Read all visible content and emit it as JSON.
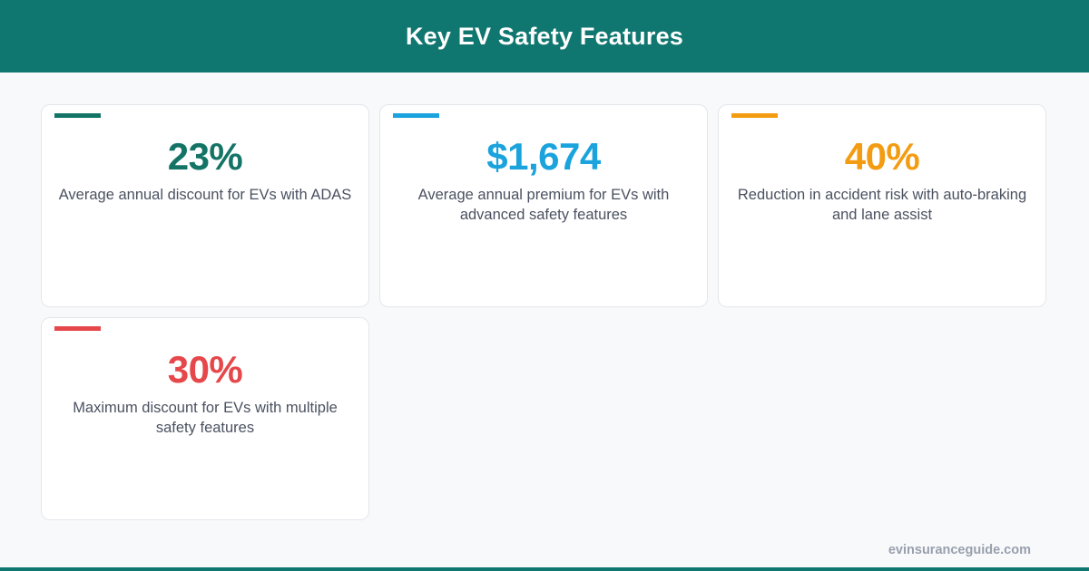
{
  "header": {
    "title": "Key EV Safety Features"
  },
  "cards": [
    {
      "value": "23%",
      "description": "Average annual discount for EVs with ADAS",
      "color": "#137466"
    },
    {
      "value": "$1,674",
      "description": "Average annual premium for EVs with advanced safety features",
      "color": "#1aa3dc"
    },
    {
      "value": "40%",
      "description": "Reduction in accident risk with auto-braking and lane assist",
      "color": "#f39c12"
    },
    {
      "value": "30%",
      "description": "Maximum discount for EVs with multiple safety features",
      "color": "#e5474a"
    }
  ],
  "footer": {
    "site": "evinsuranceguide.com"
  },
  "theme": {
    "header_bg": "#107770",
    "page_bg": "#f8f9fb"
  }
}
